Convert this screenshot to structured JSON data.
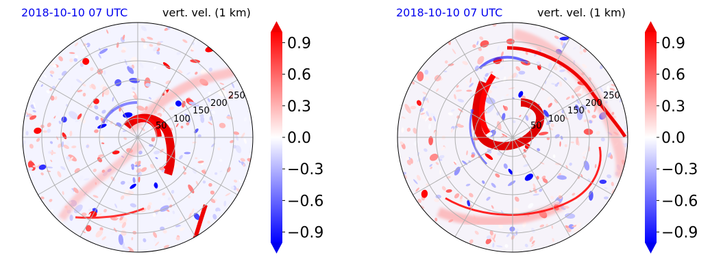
{
  "panels": [
    {
      "title_left": "2018-10-10 07 UTC",
      "title_right": "vert. vel. (1 km)",
      "radial_tick_labels": [
        "50",
        "100",
        "150",
        "200",
        "250"
      ]
    },
    {
      "title_left": "2018-10-10 07 UTC",
      "title_right": "vert. vel. (1 km)",
      "radial_tick_labels": [
        "50",
        "100",
        "150",
        "200",
        "250"
      ]
    }
  ],
  "colorbar": {
    "tick_labels": [
      "0.9",
      "0.6",
      "0.3",
      "0.0",
      "−0.3",
      "−0.6",
      "−0.9"
    ],
    "min": -1.0,
    "max": 1.0,
    "colors": {
      "low": "#0000ff",
      "mid": "#ffffff",
      "high": "#ff0000"
    }
  },
  "chart_data": [
    {
      "type": "heatmap",
      "projection": "polar",
      "title": "2018-10-10 07 UTC",
      "subtitle": "vert. vel. (1 km)",
      "radial_ticks": [
        50,
        100,
        150,
        200,
        250
      ],
      "angular_grid_deg": 30,
      "value_range": [
        -1.0,
        1.0
      ],
      "colorbar_ticks": [
        -0.9,
        -0.6,
        -0.3,
        0.0,
        0.3,
        0.6,
        0.9
      ],
      "grid": true
    },
    {
      "type": "heatmap",
      "projection": "polar",
      "title": "2018-10-10 07 UTC",
      "subtitle": "vert. vel. (1 km)",
      "radial_ticks": [
        50,
        100,
        150,
        200,
        250
      ],
      "angular_grid_deg": 30,
      "value_range": [
        -1.0,
        1.0
      ],
      "colorbar_ticks": [
        -0.9,
        -0.6,
        -0.3,
        0.0,
        0.3,
        0.6,
        0.9
      ],
      "grid": true
    }
  ]
}
